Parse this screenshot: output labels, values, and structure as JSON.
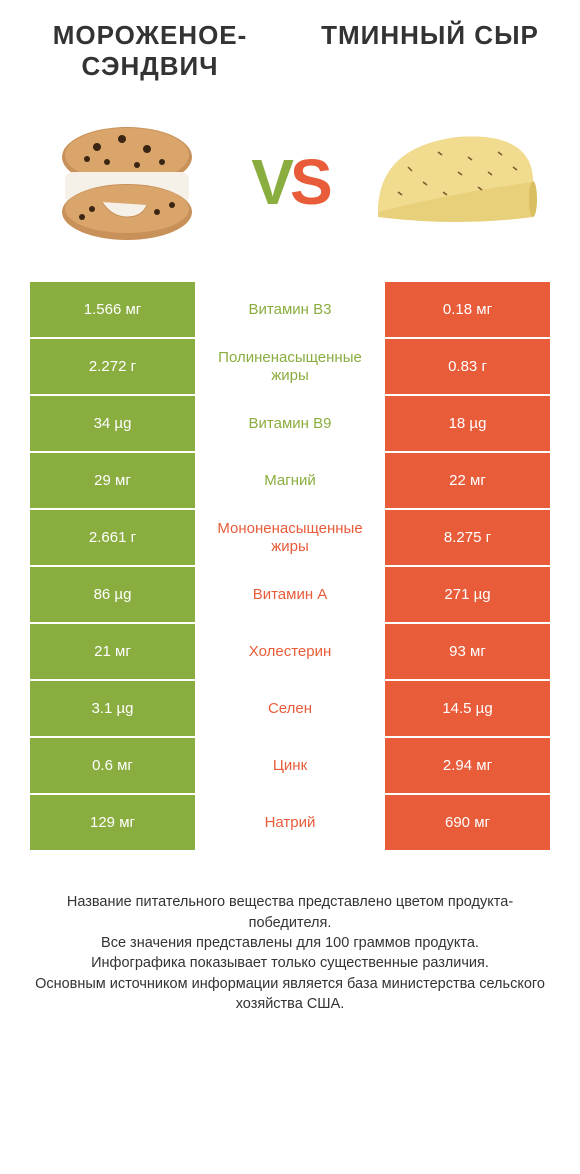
{
  "titles": {
    "left": "МОРОЖЕНОЕ-СЭНДВИЧ",
    "right": "ТМИННЫЙ СЫР"
  },
  "vs": {
    "v": "V",
    "s": "S"
  },
  "colors": {
    "left": "#8aad3f",
    "right": "#e85c3a",
    "leftText": "#8aad3f",
    "rightText": "#e85c3a"
  },
  "rows": [
    {
      "left": "1.566 мг",
      "mid": "Витамин B3",
      "right": "0.18 мг",
      "winner": "left"
    },
    {
      "left": "2.272 г",
      "mid": "Полиненасыщенные жиры",
      "right": "0.83 г",
      "winner": "left"
    },
    {
      "left": "34 µg",
      "mid": "Витамин B9",
      "right": "18 µg",
      "winner": "left"
    },
    {
      "left": "29 мг",
      "mid": "Магний",
      "right": "22 мг",
      "winner": "left"
    },
    {
      "left": "2.661 г",
      "mid": "Мононенасыщенные жиры",
      "right": "8.275 г",
      "winner": "right"
    },
    {
      "left": "86 µg",
      "mid": "Витамин A",
      "right": "271 µg",
      "winner": "right"
    },
    {
      "left": "21 мг",
      "mid": "Холестерин",
      "right": "93 мг",
      "winner": "right"
    },
    {
      "left": "3.1 µg",
      "mid": "Селен",
      "right": "14.5 µg",
      "winner": "right"
    },
    {
      "left": "0.6 мг",
      "mid": "Цинк",
      "right": "2.94 мг",
      "winner": "right"
    },
    {
      "left": "129 мг",
      "mid": "Натрий",
      "right": "690 мг",
      "winner": "right"
    }
  ],
  "footer": {
    "line1": "Название питательного вещества представлено цветом продукта-победителя.",
    "line2": "Все значения представлены для 100 граммов продукта.",
    "line3": "Инфографика показывает только существенные различия.",
    "line4": "Основным источником информации является база министерства сельского хозяйства США."
  }
}
